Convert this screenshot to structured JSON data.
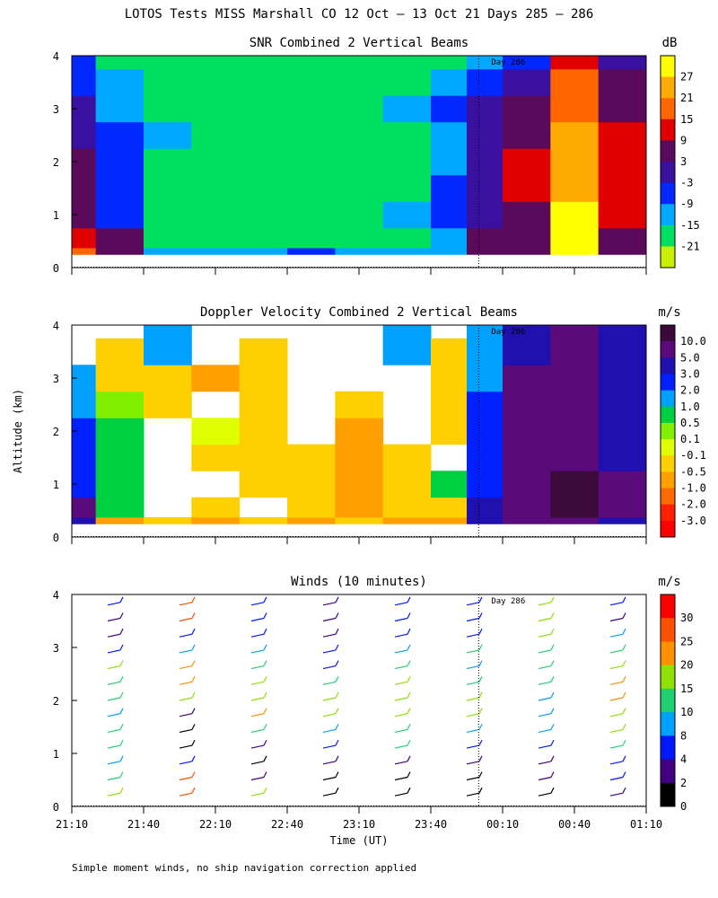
{
  "figure": {
    "title": "LOTOS Tests MISS Marshall CO  12 Oct — 13 Oct 21 Days 285 — 286",
    "ylabel": "Altitude (km)",
    "xlabel": "Time (UT)",
    "footnote": "Simple moment winds, no ship navigation correction applied",
    "x_ticks": [
      "21:10",
      "21:40",
      "22:10",
      "22:40",
      "23:10",
      "23:40",
      "00:10",
      "00:40",
      "01:10"
    ],
    "y_ticks": [
      "0",
      "1",
      "2",
      "3",
      "4"
    ]
  },
  "chart_data": [
    {
      "type": "heatmap",
      "title": "SNR Combined 2 Vertical Beams",
      "colorbar_unit": "dB",
      "xlabel": "",
      "ylabel": "Altitude (km)",
      "xlim": [
        "21:10",
        "01:10"
      ],
      "ylim": [
        0,
        4
      ],
      "day_marker": {
        "label": "Day 286",
        "time": "00:00"
      },
      "colorbar": {
        "labels": [
          "27",
          "21",
          "15",
          "9",
          "3",
          "-3",
          "-9",
          "-15",
          "-21"
        ],
        "colors": [
          "#ffff00",
          "#ffaa00",
          "#ff6600",
          "#e00000",
          "#5a0a5a",
          "#3a10a0",
          "#0028ff",
          "#00a8ff",
          "#00e060",
          "#c8f000"
        ]
      },
      "time_cols": [
        "21:10",
        "21:30",
        "21:50",
        "22:10",
        "22:30",
        "22:50",
        "23:10",
        "23:30",
        "23:50",
        "00:00",
        "00:20",
        "00:40",
        "01:00"
      ],
      "alt_rows": [
        0.25,
        0.5,
        1.0,
        1.5,
        2.0,
        2.5,
        3.0,
        3.5,
        4.0
      ],
      "values": [
        [
          15,
          3,
          -15,
          -15,
          -15,
          -9,
          -15,
          -15,
          -15,
          3,
          3,
          27,
          3
        ],
        [
          9,
          3,
          -21,
          -21,
          -21,
          -21,
          -21,
          -21,
          -15,
          3,
          3,
          27,
          3
        ],
        [
          3,
          -9,
          -21,
          -21,
          -21,
          -21,
          -21,
          -15,
          -9,
          -3,
          3,
          27,
          9
        ],
        [
          3,
          -9,
          -21,
          -21,
          -21,
          -21,
          -21,
          -21,
          -9,
          -3,
          9,
          21,
          9
        ],
        [
          3,
          -9,
          -21,
          -21,
          -21,
          -21,
          -21,
          -21,
          -15,
          -3,
          9,
          21,
          9
        ],
        [
          -3,
          -9,
          -15,
          -21,
          -21,
          -21,
          -21,
          -21,
          -15,
          -3,
          3,
          21,
          9
        ],
        [
          -3,
          -15,
          -21,
          -21,
          -21,
          -21,
          -21,
          -15,
          -9,
          -3,
          3,
          15,
          3
        ],
        [
          -9,
          -15,
          -21,
          -21,
          -21,
          -21,
          -21,
          -21,
          -15,
          -9,
          -3,
          15,
          3
        ],
        [
          -9,
          -21,
          -21,
          -21,
          -21,
          -21,
          -21,
          -21,
          -21,
          -15,
          -9,
          9,
          -3
        ]
      ]
    },
    {
      "type": "heatmap",
      "title": "Doppler Velocity Combined 2 Vertical Beams",
      "colorbar_unit": "m/s",
      "xlim": [
        "21:10",
        "01:10"
      ],
      "ylim": [
        0,
        4
      ],
      "day_marker": {
        "label": "Day 286",
        "time": "00:00"
      },
      "colorbar": {
        "labels": [
          "10.0",
          "5.0",
          "3.0",
          "2.0",
          "1.0",
          "0.5",
          "0.1",
          "-0.1",
          "-0.5",
          "-1.0",
          "-2.0",
          "-3.0"
        ],
        "colors": [
          "#3a0a3a",
          "#5a0a7a",
          "#2010b0",
          "#0020ff",
          "#00a0ff",
          "#00d040",
          "#80f000",
          "#e0ff00",
          "#ffd000",
          "#ffa000",
          "#ff6a00",
          "#ff2000",
          "#ff0000"
        ]
      },
      "time_cols": [
        "21:10",
        "21:30",
        "21:50",
        "22:10",
        "22:30",
        "22:50",
        "23:10",
        "23:30",
        "23:50",
        "00:00",
        "00:20",
        "00:40",
        "01:00"
      ],
      "alt_rows": [
        0.25,
        0.5,
        1.0,
        1.5,
        2.0,
        2.5,
        3.0,
        3.5,
        4.0
      ],
      "values": [
        [
          3.0,
          -1.0,
          -0.5,
          -1.0,
          -0.5,
          -1.0,
          -0.5,
          -1.0,
          -1.0,
          3.0,
          5.0,
          5.0,
          3.0
        ],
        [
          5.0,
          0.5,
          null,
          -0.5,
          null,
          -0.5,
          -1.0,
          -0.5,
          -0.5,
          3.0,
          5.0,
          10.0,
          5.0
        ],
        [
          2.0,
          0.5,
          null,
          null,
          -0.5,
          -0.5,
          -1.0,
          -0.5,
          0.5,
          2.0,
          5.0,
          10.0,
          5.0
        ],
        [
          2.0,
          0.5,
          null,
          -0.5,
          -0.5,
          -0.5,
          -1.0,
          -0.5,
          null,
          2.0,
          5.0,
          5.0,
          3.0
        ],
        [
          2.0,
          0.5,
          null,
          -0.1,
          -0.5,
          null,
          -1.0,
          null,
          -0.5,
          2.0,
          5.0,
          5.0,
          3.0
        ],
        [
          1.0,
          0.1,
          -0.5,
          null,
          -0.5,
          null,
          -0.5,
          null,
          -0.5,
          2.0,
          5.0,
          5.0,
          3.0
        ],
        [
          1.0,
          -0.5,
          -0.5,
          -1.0,
          -0.5,
          null,
          null,
          null,
          -0.5,
          1.0,
          5.0,
          5.0,
          3.0
        ],
        [
          null,
          -0.5,
          1.0,
          null,
          -0.5,
          null,
          null,
          1.0,
          -0.5,
          1.0,
          3.0,
          5.0,
          3.0
        ],
        [
          null,
          null,
          1.0,
          null,
          null,
          null,
          null,
          1.0,
          null,
          1.0,
          3.0,
          5.0,
          3.0
        ]
      ]
    },
    {
      "type": "scatter",
      "title": "Winds (10 minutes)",
      "colorbar_unit": "m/s",
      "xlabel": "Time (UT)",
      "xlim": [
        "21:10",
        "01:10"
      ],
      "ylim": [
        0,
        4
      ],
      "day_marker": {
        "label": "Day 286",
        "time": "00:00"
      },
      "colorbar": {
        "labels": [
          "30",
          "25",
          "20",
          "15",
          "10",
          "8",
          "4",
          "2",
          "0"
        ],
        "colors": [
          "#ff0000",
          "#ff5000",
          "#ff9000",
          "#90e000",
          "#20d070",
          "#00a0ff",
          "#0018ff",
          "#400080",
          "#000000"
        ]
      },
      "profiles": [
        {
          "time": "21:25",
          "speed": [
            15,
            10,
            8,
            10,
            10,
            8,
            10,
            10,
            15,
            4,
            2,
            2,
            4
          ]
        },
        {
          "time": "21:55",
          "speed": [
            25,
            25,
            4,
            0,
            0,
            2,
            15,
            20,
            20,
            8,
            4,
            25,
            25
          ]
        },
        {
          "time": "22:25",
          "speed": [
            15,
            2,
            0,
            2,
            10,
            20,
            15,
            15,
            10,
            8,
            4,
            4,
            4
          ]
        },
        {
          "time": "22:55",
          "speed": [
            0,
            0,
            2,
            4,
            8,
            15,
            15,
            10,
            4,
            4,
            2,
            2,
            2
          ]
        },
        {
          "time": "23:25",
          "speed": [
            0,
            0,
            2,
            10,
            10,
            15,
            15,
            15,
            10,
            8,
            4,
            4,
            4
          ]
        },
        {
          "time": "23:55",
          "speed": [
            0,
            0,
            2,
            4,
            8,
            15,
            15,
            10,
            8,
            10,
            4,
            4,
            4
          ]
        },
        {
          "time": "00:25",
          "speed": [
            0,
            2,
            2,
            4,
            8,
            8,
            8,
            10,
            10,
            10,
            15,
            15,
            15
          ]
        },
        {
          "time": "00:55",
          "speed": [
            2,
            4,
            4,
            10,
            15,
            15,
            20,
            20,
            15,
            10,
            8,
            2,
            4
          ]
        }
      ],
      "alt_levels": [
        0.2,
        0.5,
        0.8,
        1.1,
        1.4,
        1.7,
        2.0,
        2.3,
        2.6,
        2.9,
        3.2,
        3.5,
        3.8
      ]
    }
  ]
}
